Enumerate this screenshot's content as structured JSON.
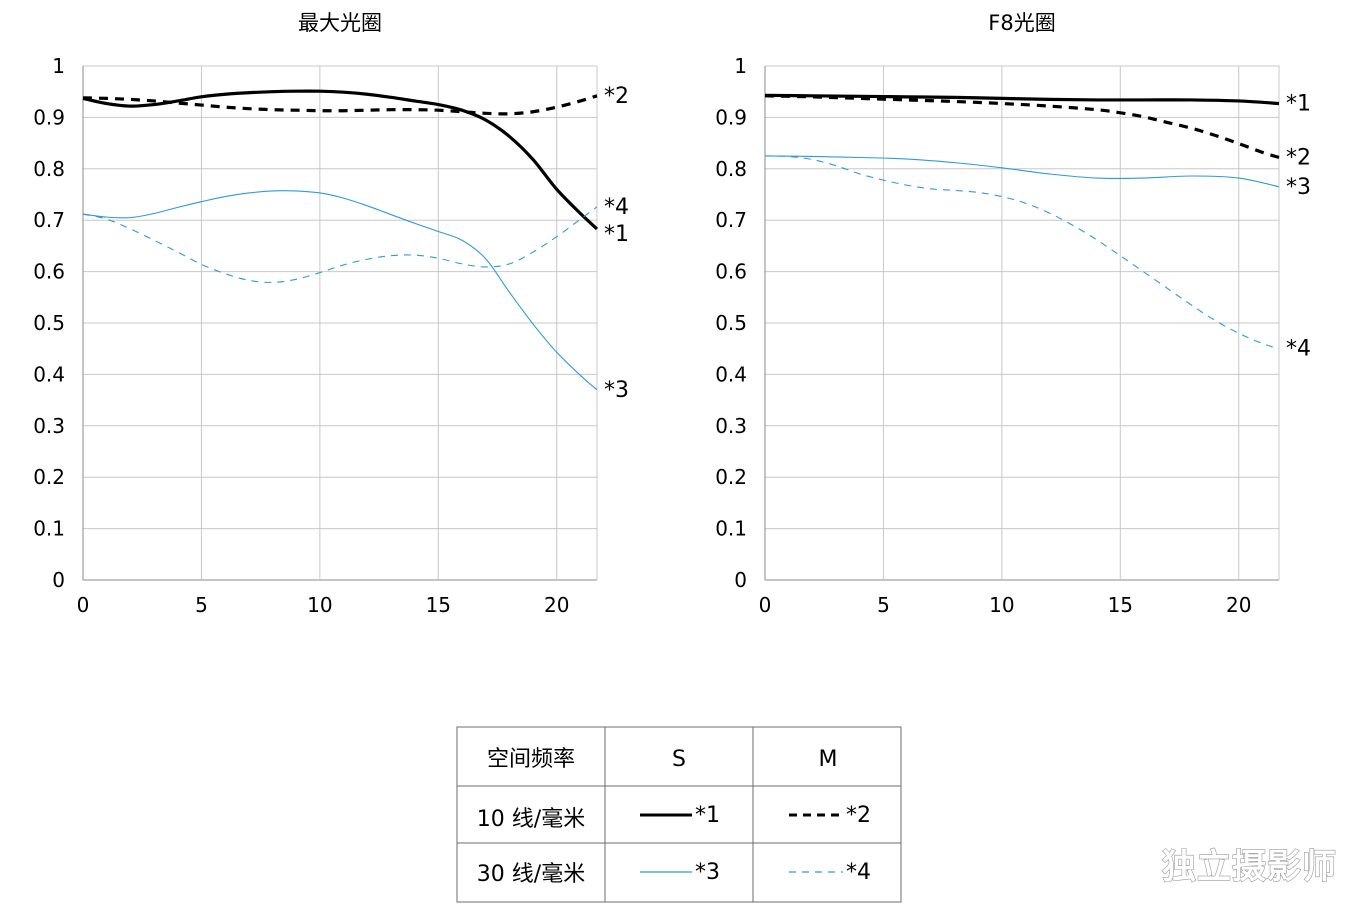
{
  "chart_data": [
    {
      "type": "line",
      "title": "最大光圈",
      "xlabel": "",
      "ylabel": "",
      "xlim": [
        0,
        21.7
      ],
      "ylim": [
        0,
        1
      ],
      "xticks": [
        "0",
        "5",
        "10",
        "15",
        "20"
      ],
      "yticks": [
        "0",
        "0.1",
        "0.2",
        "0.3",
        "0.4",
        "0.5",
        "0.6",
        "0.7",
        "0.8",
        "0.9",
        "1"
      ],
      "grid": true,
      "series": [
        {
          "name": "*1",
          "style": "solid-thick",
          "color": "#000000",
          "x": [
            0,
            1,
            2,
            3,
            4,
            5,
            6,
            7,
            8,
            9,
            10,
            11,
            12,
            13,
            14,
            15,
            16,
            17,
            18,
            19,
            20,
            21,
            21.7
          ],
          "y": [
            0.937,
            0.927,
            0.922,
            0.925,
            0.932,
            0.94,
            0.945,
            0.948,
            0.95,
            0.951,
            0.951,
            0.949,
            0.945,
            0.939,
            0.932,
            0.925,
            0.914,
            0.895,
            0.863,
            0.818,
            0.76,
            0.713,
            0.683
          ]
        },
        {
          "name": "*2",
          "style": "dashed-thick",
          "color": "#000000",
          "x": [
            0,
            1,
            2,
            3,
            4,
            5,
            6,
            7,
            8,
            9,
            10,
            11,
            12,
            13,
            14,
            15,
            16,
            17,
            18,
            19,
            20,
            21,
            21.7
          ],
          "y": [
            0.938,
            0.937,
            0.935,
            0.932,
            0.928,
            0.924,
            0.92,
            0.917,
            0.915,
            0.914,
            0.913,
            0.913,
            0.914,
            0.915,
            0.915,
            0.914,
            0.911,
            0.908,
            0.907,
            0.911,
            0.92,
            0.932,
            0.942
          ]
        },
        {
          "name": "*3",
          "style": "solid-thin",
          "color": "#2e9bd6",
          "x": [
            0,
            1,
            2,
            3,
            4,
            5,
            6,
            7,
            8,
            9,
            10,
            11,
            12,
            13,
            14,
            15,
            16,
            17,
            18,
            19,
            20,
            21,
            21.7
          ],
          "y": [
            0.712,
            0.706,
            0.705,
            0.713,
            0.725,
            0.736,
            0.746,
            0.753,
            0.757,
            0.757,
            0.753,
            0.743,
            0.728,
            0.711,
            0.694,
            0.678,
            0.661,
            0.625,
            0.56,
            0.498,
            0.443,
            0.398,
            0.37
          ]
        },
        {
          "name": "*4",
          "style": "dashed-thin",
          "color": "#2e9bd6",
          "x": [
            0,
            1,
            2,
            3,
            4,
            5,
            6,
            7,
            8,
            9,
            10,
            11,
            12,
            13,
            14,
            15,
            16,
            17,
            18,
            19,
            20,
            21,
            21.7
          ],
          "y": [
            0.712,
            0.702,
            0.683,
            0.661,
            0.638,
            0.614,
            0.596,
            0.583,
            0.579,
            0.585,
            0.598,
            0.613,
            0.624,
            0.631,
            0.632,
            0.626,
            0.615,
            0.609,
            0.615,
            0.638,
            0.668,
            0.702,
            0.726
          ]
        }
      ]
    },
    {
      "type": "line",
      "title": "F8光圈",
      "xlabel": "",
      "ylabel": "",
      "xlim": [
        0,
        21.7
      ],
      "ylim": [
        0,
        1
      ],
      "xticks": [
        "0",
        "5",
        "10",
        "15",
        "20"
      ],
      "yticks": [
        "0",
        "0.1",
        "0.2",
        "0.3",
        "0.4",
        "0.5",
        "0.6",
        "0.7",
        "0.8",
        "0.9",
        "1"
      ],
      "grid": true,
      "series": [
        {
          "name": "*1",
          "style": "solid-thick",
          "color": "#000000",
          "x": [
            0,
            2,
            4,
            6,
            8,
            10,
            12,
            14,
            16,
            18,
            20,
            21.7
          ],
          "y": [
            0.943,
            0.942,
            0.941,
            0.94,
            0.939,
            0.937,
            0.935,
            0.934,
            0.934,
            0.934,
            0.932,
            0.927
          ]
        },
        {
          "name": "*2",
          "style": "dashed-thick",
          "color": "#000000",
          "x": [
            0,
            2,
            4,
            6,
            8,
            10,
            12,
            14,
            15,
            16,
            17,
            18,
            19,
            20,
            21,
            21.7
          ],
          "y": [
            0.942,
            0.94,
            0.937,
            0.934,
            0.931,
            0.927,
            0.922,
            0.915,
            0.909,
            0.901,
            0.89,
            0.879,
            0.865,
            0.849,
            0.832,
            0.822
          ]
        },
        {
          "name": "*3",
          "style": "solid-thin",
          "color": "#2e9bd6",
          "x": [
            0,
            2,
            4,
            6,
            8,
            10,
            12,
            14,
            16,
            18,
            20,
            21.7
          ],
          "y": [
            0.825,
            0.824,
            0.822,
            0.819,
            0.812,
            0.802,
            0.79,
            0.782,
            0.782,
            0.786,
            0.782,
            0.765
          ]
        },
        {
          "name": "*4",
          "style": "dashed-thin",
          "color": "#2e9bd6",
          "x": [
            0,
            1,
            2,
            3,
            4,
            5,
            6,
            7,
            8,
            9,
            10,
            11,
            12,
            13,
            14,
            15,
            16,
            17,
            18,
            19,
            20,
            21,
            21.7
          ],
          "y": [
            0.825,
            0.824,
            0.818,
            0.806,
            0.79,
            0.778,
            0.768,
            0.761,
            0.758,
            0.754,
            0.746,
            0.733,
            0.714,
            0.69,
            0.662,
            0.631,
            0.599,
            0.567,
            0.535,
            0.505,
            0.48,
            0.46,
            0.45
          ]
        }
      ]
    }
  ],
  "legend_table": {
    "header": {
      "col0": "空间频率",
      "col1": "S",
      "col2": "M"
    },
    "rows": [
      {
        "label": "10 线/毫米",
        "s_label": "*1",
        "m_label": "*2"
      },
      {
        "label": "30 线/毫米",
        "s_label": "*3",
        "m_label": "*4"
      }
    ]
  },
  "watermark": "独立摄影师",
  "colors": {
    "black_series": "#000000",
    "blue_series": "#2e9bd6",
    "grid": "#c8c8c8",
    "axis": "#8a8a8a"
  }
}
